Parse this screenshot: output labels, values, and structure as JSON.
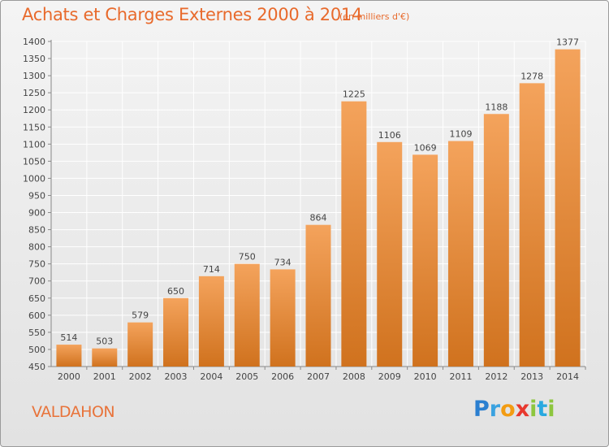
{
  "colors": {
    "title": "#e86a2c",
    "bar_top": "#f4a35c",
    "bar_bottom": "#d0721e",
    "grid": "#ffffff",
    "axis": "#888888"
  },
  "place_name": "VALDAHON",
  "logo": {
    "letters": [
      "P",
      "r",
      "o",
      "x",
      "i",
      "t",
      "i"
    ],
    "colors": [
      "#2a7fd0",
      "#3aa2e0",
      "#f39c12",
      "#e8382e",
      "#8dc63f",
      "#29a9e0",
      "#8dc63f"
    ]
  },
  "chart_data": {
    "type": "bar",
    "title": "Achats et Charges Externes 2000 à 2014",
    "subtitle": "(en milliers d'€)",
    "xlabel": "",
    "ylabel": "",
    "categories": [
      "2000",
      "2001",
      "2002",
      "2003",
      "2004",
      "2005",
      "2006",
      "2007",
      "2008",
      "2009",
      "2010",
      "2011",
      "2012",
      "2013",
      "2014"
    ],
    "values": [
      514,
      503,
      579,
      650,
      714,
      750,
      734,
      864,
      1225,
      1106,
      1069,
      1109,
      1188,
      1278,
      1377
    ],
    "ylim": [
      450,
      1400
    ],
    "yticks": [
      450,
      500,
      550,
      600,
      650,
      700,
      750,
      800,
      850,
      900,
      950,
      1000,
      1050,
      1100,
      1150,
      1200,
      1250,
      1300,
      1350,
      1400
    ],
    "grid": true,
    "legend": "none"
  }
}
